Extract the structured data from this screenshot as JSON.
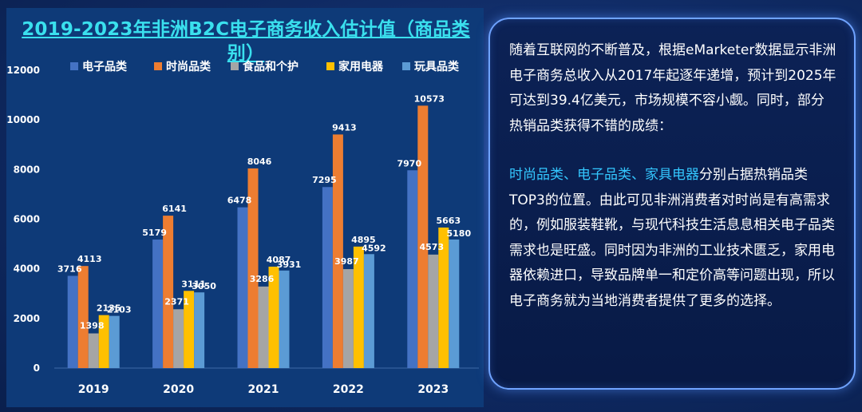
{
  "chart_data": {
    "type": "bar",
    "title": "2019-2023年非洲B2C电子商务收入估计值（商品类别）",
    "categories": [
      "2019",
      "2020",
      "2021",
      "2022",
      "2023"
    ],
    "series": [
      {
        "name": "电子品类",
        "values": [
          3716,
          5179,
          6478,
          7295,
          7970
        ],
        "color": "#4472c4"
      },
      {
        "name": "时尚品类",
        "values": [
          4113,
          6141,
          8046,
          9413,
          10573
        ],
        "color": "#ed7d31"
      },
      {
        "name": "食品和个护",
        "values": [
          1398,
          2371,
          3286,
          3987,
          4573
        ],
        "color": "#a5a5a5"
      },
      {
        "name": "家用电器",
        "values": [
          2135,
          3111,
          4087,
          4895,
          5663
        ],
        "color": "#ffc000"
      },
      {
        "name": "玩具品类",
        "values": [
          2103,
          3050,
          3931,
          4592,
          5180
        ],
        "color": "#5b9bd5"
      }
    ],
    "ylim": [
      0,
      12000
    ],
    "yticks": [
      0,
      2000,
      4000,
      6000,
      8000,
      10000,
      12000
    ],
    "legend_position": "top",
    "grid": false
  },
  "text_panel": {
    "para1": "随着互联网的不断普及，根据eMarketer数据显示非洲电子商务总收入从2017年起逐年递增，预计到2025年可达到39.4亿美元，市场规模不容小觑。同时，部分热销品类获得不错的成绩：",
    "para2_highlight": "时尚品类、电子品类、家具电器",
    "para2_rest": "分别占据热销品类TOP3的位置。由此可见非洲消费者对时尚是有高需求的，例如服装鞋靴，与现代科技生活息息相关电子品类需求也是旺盛。同时因为非洲的工业技术匮乏，家用电器依赖进口，导致品牌单一和定价高等问题出现，所以电子商务就为当地消费者提供了更多的选择。",
    "highlight_color": "#33c7ff"
  }
}
